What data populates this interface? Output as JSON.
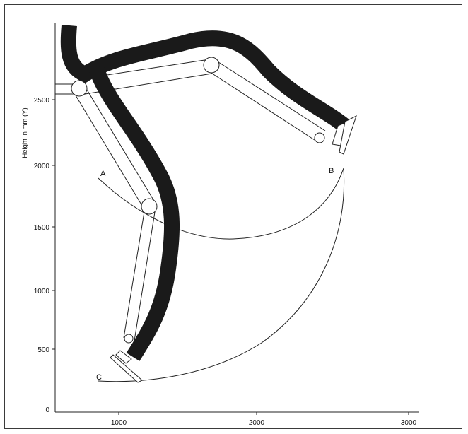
{
  "figure": {
    "y_axis_label": "Height in mm (Y)",
    "x_ticks": [
      "1000",
      "2000",
      "3000"
    ],
    "y_ticks": [
      "0",
      "500",
      "1000",
      "1500",
      "2000",
      "2500"
    ],
    "points": [
      "A",
      "B",
      "C"
    ]
  },
  "colors": {
    "hose": "#1a1a1a",
    "line": "#222222",
    "frame": "#3a3a3a"
  }
}
